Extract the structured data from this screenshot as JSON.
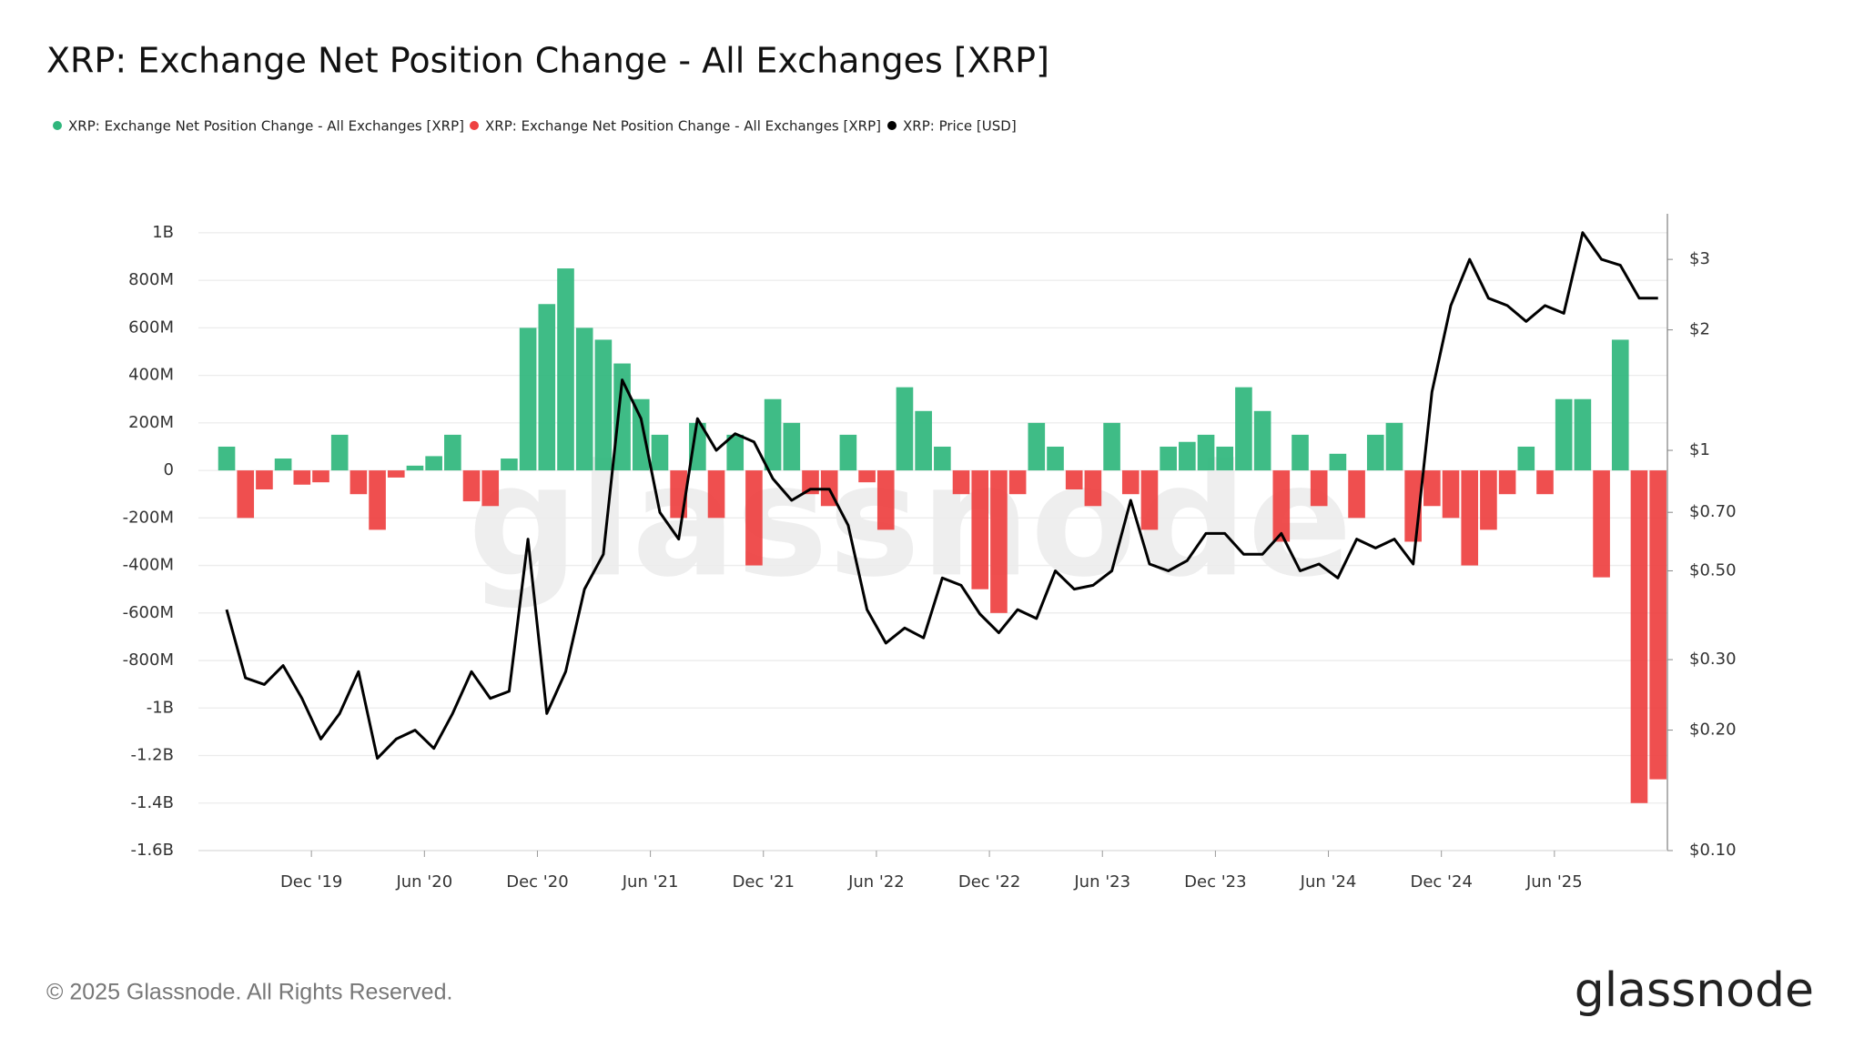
{
  "chart_data": {
    "type": "netflow-price",
    "title": "XRP: Exchange Net Position Change - All Exchanges [XRP]",
    "watermark": "glassnode",
    "copyright": "© 2025 Glassnode. All Rights Reserved.",
    "logo": "glassnode",
    "x": [
      "2019-07",
      "2019-08",
      "2019-09",
      "2019-10",
      "2019-11",
      "2019-12",
      "2020-01",
      "2020-02",
      "2020-03",
      "2020-04",
      "2020-05",
      "2020-06",
      "2020-07",
      "2020-08",
      "2020-09",
      "2020-10",
      "2020-11",
      "2020-12",
      "2021-01",
      "2021-02",
      "2021-03",
      "2021-04",
      "2021-05",
      "2021-06",
      "2021-07",
      "2021-08",
      "2021-09",
      "2021-10",
      "2021-11",
      "2021-12",
      "2022-01",
      "2022-02",
      "2022-03",
      "2022-04",
      "2022-05",
      "2022-06",
      "2022-07",
      "2022-08",
      "2022-09",
      "2022-10",
      "2022-11",
      "2022-12",
      "2023-01",
      "2023-02",
      "2023-03",
      "2023-04",
      "2023-05",
      "2023-06",
      "2023-07",
      "2023-08",
      "2023-09",
      "2023-10",
      "2023-11",
      "2023-12",
      "2024-01",
      "2024-02",
      "2024-03",
      "2024-04",
      "2024-05",
      "2024-06",
      "2024-07",
      "2024-08",
      "2024-09",
      "2024-10",
      "2024-11",
      "2024-12",
      "2025-01",
      "2025-02",
      "2025-03",
      "2025-04",
      "2025-05",
      "2025-06",
      "2025-07",
      "2025-08",
      "2025-09",
      "2025-10",
      "2025-11"
    ],
    "xlim": [
      "2019-06",
      "2025-12"
    ],
    "xticks": [
      {
        "value": "2019-12",
        "label": "Dec '19"
      },
      {
        "value": "2020-06",
        "label": "Jun '20"
      },
      {
        "value": "2020-12",
        "label": "Dec '20"
      },
      {
        "value": "2021-06",
        "label": "Jun '21"
      },
      {
        "value": "2021-12",
        "label": "Dec '21"
      },
      {
        "value": "2022-06",
        "label": "Jun '22"
      },
      {
        "value": "2022-12",
        "label": "Dec '22"
      },
      {
        "value": "2023-06",
        "label": "Jun '23"
      },
      {
        "value": "2023-12",
        "label": "Dec '23"
      },
      {
        "value": "2024-06",
        "label": "Jun '24"
      },
      {
        "value": "2024-12",
        "label": "Dec '24"
      },
      {
        "value": "2025-06",
        "label": "Jun '25"
      }
    ],
    "ylim": [
      -1600000000,
      1080000000
    ],
    "yticks": [
      {
        "value": 1000000000,
        "label": "1B"
      },
      {
        "value": 800000000,
        "label": "800M"
      },
      {
        "value": 600000000,
        "label": "600M"
      },
      {
        "value": 400000000,
        "label": "400M"
      },
      {
        "value": 200000000,
        "label": "200M"
      },
      0,
      {
        "value": -200000000,
        "label": "-200M"
      },
      {
        "value": -400000000,
        "label": "-400M"
      },
      {
        "value": -600000000,
        "label": "-600M"
      },
      {
        "value": -800000000,
        "label": "-800M"
      },
      {
        "value": -1000000000,
        "label": "-1B"
      },
      {
        "value": -1200000000,
        "label": "-1.2B"
      },
      {
        "value": -1400000000,
        "label": "-1.4B"
      },
      {
        "value": -1600000000,
        "label": "-1.6B"
      }
    ],
    "y2lim": [
      0.1,
      3.9
    ],
    "y2log": true,
    "y2ticks": [
      {
        "value": 3,
        "label": "$3"
      },
      {
        "value": 2,
        "label": "$2"
      },
      {
        "value": 1,
        "label": "$1"
      },
      {
        "value": 0.7,
        "label": "$0.70"
      },
      {
        "value": 0.5,
        "label": "$0.50"
      },
      {
        "value": 0.3,
        "label": "$0.30"
      },
      {
        "value": 0.2,
        "label": "$0.20"
      },
      {
        "value": 0.1,
        "label": "$0.10"
      }
    ],
    "grid": true,
    "series": [
      {
        "name": "XRP: Exchange Net Position Change - All Exchanges [XRP]",
        "color": "#2fb67c",
        "values": [
          100000000,
          null,
          null,
          50000000,
          null,
          null,
          150000000,
          null,
          null,
          null,
          20000000,
          60000000,
          150000000,
          null,
          null,
          50000000,
          600000000,
          700000000,
          850000000,
          600000000,
          550000000,
          450000000,
          300000000,
          150000000,
          null,
          200000000,
          null,
          150000000,
          null,
          300000000,
          200000000,
          null,
          null,
          150000000,
          null,
          null,
          350000000,
          250000000,
          100000000,
          null,
          null,
          null,
          null,
          200000000,
          100000000,
          null,
          null,
          200000000,
          null,
          null,
          100000000,
          120000000,
          150000000,
          100000000,
          350000000,
          250000000,
          null,
          150000000,
          null,
          70000000,
          null,
          150000000,
          200000000,
          null,
          null,
          null,
          null,
          null,
          null,
          100000000,
          null,
          300000000,
          300000000,
          null,
          550000000,
          null,
          null
        ]
      },
      {
        "name": "XRP: Exchange Net Position Change - All Exchanges [XRP]",
        "color": "#ee4040",
        "values": [
          null,
          -200000000,
          -80000000,
          null,
          -60000000,
          -50000000,
          null,
          -100000000,
          -250000000,
          -30000000,
          null,
          null,
          null,
          -130000000,
          -150000000,
          null,
          null,
          null,
          null,
          null,
          null,
          null,
          null,
          null,
          -200000000,
          null,
          -200000000,
          null,
          -400000000,
          null,
          null,
          -100000000,
          -150000000,
          null,
          -50000000,
          -250000000,
          null,
          null,
          null,
          -100000000,
          -500000000,
          -600000000,
          -100000000,
          null,
          null,
          -80000000,
          -150000000,
          null,
          -100000000,
          -250000000,
          null,
          null,
          null,
          null,
          null,
          null,
          -300000000,
          null,
          -150000000,
          null,
          -200000000,
          null,
          null,
          -300000000,
          -150000000,
          -200000000,
          -400000000,
          -250000000,
          -100000000,
          null,
          -100000000,
          null,
          null,
          -450000000,
          null,
          -1400000000,
          -1300000000
        ]
      },
      {
        "name": "XRP: Price [USD]",
        "color": "#000000",
        "axis": "y2",
        "values": [
          0.4,
          0.27,
          0.26,
          0.29,
          0.24,
          0.19,
          0.22,
          0.28,
          0.17,
          0.19,
          0.2,
          0.18,
          0.22,
          0.28,
          0.24,
          0.25,
          0.6,
          0.22,
          0.28,
          0.45,
          0.55,
          1.5,
          1.2,
          0.7,
          0.6,
          1.2,
          1.0,
          1.1,
          1.05,
          0.85,
          0.75,
          0.8,
          0.8,
          0.65,
          0.4,
          0.33,
          0.36,
          0.34,
          0.48,
          0.46,
          0.39,
          0.35,
          0.4,
          0.38,
          0.5,
          0.45,
          0.46,
          0.5,
          0.75,
          0.52,
          0.5,
          0.53,
          0.62,
          0.62,
          0.55,
          0.55,
          0.62,
          0.5,
          0.52,
          0.48,
          0.6,
          0.57,
          0.6,
          0.52,
          1.4,
          2.3,
          3.0,
          2.4,
          2.3,
          2.1,
          2.3,
          2.2,
          3.5,
          3.0,
          2.9,
          2.4,
          2.4
        ]
      }
    ]
  }
}
